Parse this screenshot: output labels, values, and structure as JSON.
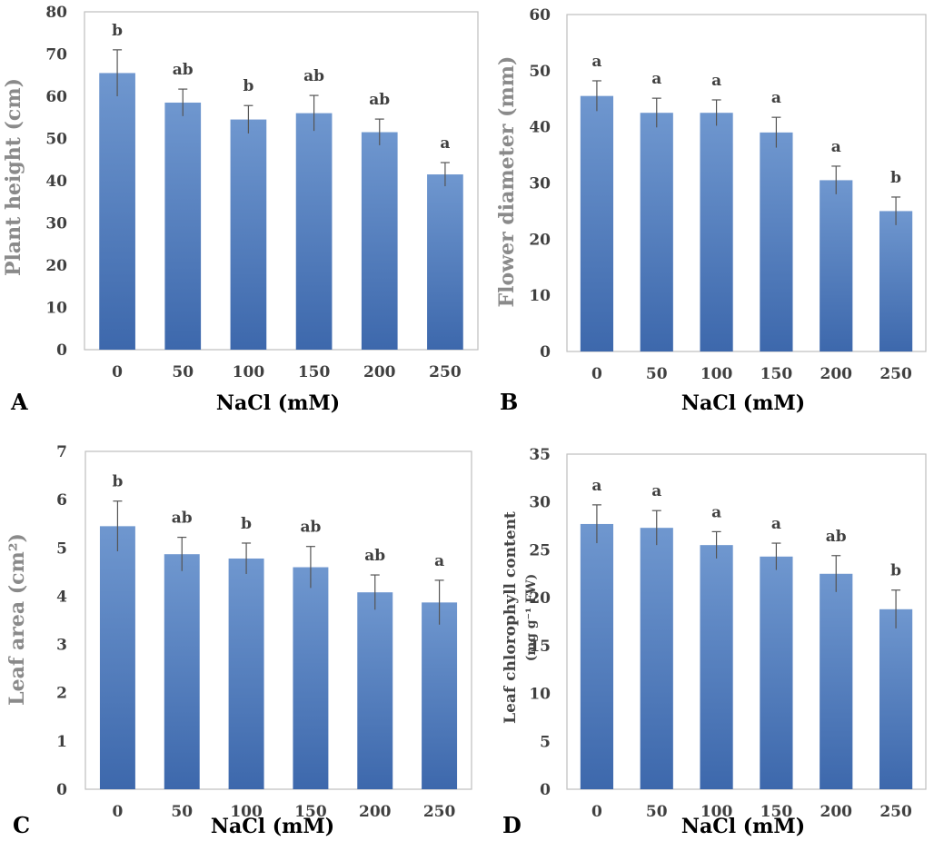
{
  "chart_data": [
    {
      "type": "bar",
      "panel": "A",
      "xlabel": "NaCl (mM)",
      "ylabel": "Plant height (cm)",
      "ylim": [
        0,
        80
      ],
      "yticks": [
        0,
        10,
        20,
        30,
        40,
        50,
        60,
        70,
        80
      ],
      "categories": [
        "0",
        "50",
        "100",
        "150",
        "200",
        "250"
      ],
      "values": [
        65.5,
        58.5,
        54.5,
        56,
        51.5,
        41.5
      ],
      "errors": [
        5.5,
        3.2,
        3.3,
        4.2,
        3.1,
        2.8
      ],
      "letters": [
        "b",
        "ab",
        "b",
        "ab",
        "ab",
        "a"
      ],
      "color": "#4a7cc0"
    },
    {
      "type": "bar",
      "panel": "B",
      "xlabel": "NaCl (mM)",
      "ylabel": "Flower diameter (mm)",
      "ylim": [
        0,
        60
      ],
      "yticks": [
        0,
        10,
        20,
        30,
        40,
        50,
        60
      ],
      "categories": [
        "0",
        "50",
        "100",
        "150",
        "200",
        "250"
      ],
      "values": [
        45.5,
        42.5,
        42.5,
        39,
        30.5,
        25
      ],
      "errors": [
        2.7,
        2.6,
        2.3,
        2.7,
        2.5,
        2.5
      ],
      "letters": [
        "a",
        "a",
        "a",
        "a",
        "a",
        "b"
      ],
      "color": "#4a7cc0"
    },
    {
      "type": "bar",
      "panel": "C",
      "xlabel": "NaCl (mM)",
      "ylabel": "Leaf area (cm²)",
      "ylim": [
        0,
        7
      ],
      "yticks": [
        0,
        1,
        2,
        3,
        4,
        5,
        6,
        7
      ],
      "categories": [
        "0",
        "50",
        "100",
        "150",
        "200",
        "250"
      ],
      "values": [
        5.45,
        4.87,
        4.78,
        4.6,
        4.08,
        3.87
      ],
      "errors": [
        0.52,
        0.35,
        0.32,
        0.43,
        0.36,
        0.46
      ],
      "letters": [
        "b",
        "ab",
        "b",
        "ab",
        "ab",
        "a"
      ],
      "color": "#4a7cc0"
    },
    {
      "type": "bar",
      "panel": "D",
      "xlabel": "NaCl (mM)",
      "ylabel": "Leaf chlorophyll content",
      "ylabel2": "(mg g⁻¹ FW)",
      "ylim": [
        0,
        35
      ],
      "yticks": [
        0,
        5,
        10,
        15,
        20,
        25,
        30,
        35
      ],
      "categories": [
        "0",
        "50",
        "100",
        "150",
        "200",
        "250"
      ],
      "values": [
        27.7,
        27.3,
        25.5,
        24.3,
        22.5,
        18.8
      ],
      "errors": [
        2.0,
        1.8,
        1.4,
        1.4,
        1.9,
        2.0
      ],
      "letters": [
        "a",
        "a",
        "a",
        "a",
        "ab",
        "b"
      ],
      "color": "#4a7cc0"
    }
  ]
}
